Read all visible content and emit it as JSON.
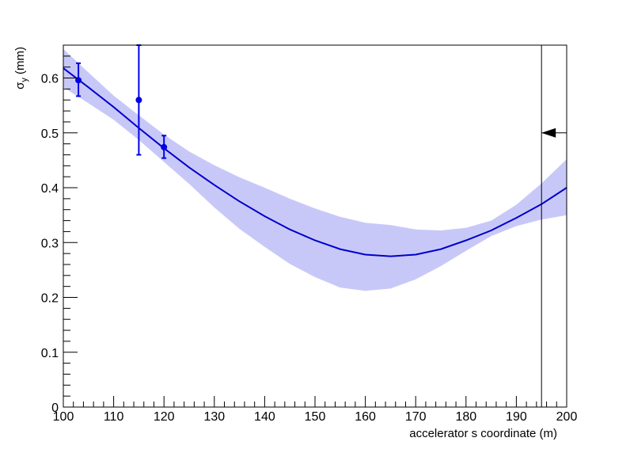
{
  "chart_data": {
    "type": "line",
    "title": "",
    "xlabel": "accelerator s coordinate (m)",
    "ylabel": {
      "symbol": "σ",
      "subscript": "y",
      "unit": " (mm)"
    },
    "xlim": [
      100,
      200
    ],
    "ylim": [
      0,
      0.66
    ],
    "x_ticks": [
      100,
      110,
      120,
      130,
      140,
      150,
      160,
      170,
      180,
      190,
      200
    ],
    "x_tick_labels": [
      "100",
      "110",
      "120",
      "130",
      "140",
      "150",
      "160",
      "170",
      "180",
      "190",
      "200"
    ],
    "y_ticks": [
      0,
      0.1,
      0.2,
      0.3,
      0.4,
      0.5,
      0.6
    ],
    "y_tick_labels": [
      "0",
      "0.1",
      "0.2",
      "0.3",
      "0.4",
      "0.5",
      "0.6"
    ],
    "grid": false,
    "colors": {
      "fit": "#0000cc",
      "band": "#c8c8f8",
      "points": "#0000e6",
      "marker": "#000000"
    },
    "fit_curve": {
      "x": [
        100,
        105,
        110,
        115,
        120,
        125,
        130,
        135,
        140,
        145,
        150,
        155,
        160,
        165,
        170,
        175,
        180,
        185,
        190,
        195,
        200
      ],
      "y": [
        0.618,
        0.583,
        0.547,
        0.509,
        0.472,
        0.437,
        0.405,
        0.375,
        0.348,
        0.324,
        0.304,
        0.288,
        0.278,
        0.275,
        0.278,
        0.288,
        0.304,
        0.322,
        0.345,
        0.37,
        0.4
      ]
    },
    "confidence_band": {
      "x": [
        100,
        105,
        110,
        115,
        120,
        125,
        130,
        135,
        140,
        145,
        150,
        155,
        160,
        165,
        170,
        175,
        180,
        185,
        190,
        195,
        200
      ],
      "upper": [
        0.653,
        0.61,
        0.568,
        0.532,
        0.497,
        0.466,
        0.441,
        0.419,
        0.4,
        0.38,
        0.362,
        0.347,
        0.336,
        0.332,
        0.324,
        0.322,
        0.327,
        0.34,
        0.369,
        0.408,
        0.452
      ],
      "lower": [
        0.583,
        0.554,
        0.524,
        0.487,
        0.447,
        0.407,
        0.364,
        0.325,
        0.292,
        0.261,
        0.237,
        0.218,
        0.212,
        0.216,
        0.233,
        0.257,
        0.285,
        0.312,
        0.33,
        0.342,
        0.35
      ]
    },
    "points": [
      {
        "x": 103,
        "y": 0.596,
        "y_err_low": 0.029,
        "y_err_high": 0.031
      },
      {
        "x": 115,
        "y": 0.56,
        "y_err_low": 0.1,
        "y_err_high": 0.1
      },
      {
        "x": 120,
        "y": 0.474,
        "y_err_low": 0.02,
        "y_err_high": 0.021
      }
    ],
    "vertical_line": {
      "x": 195
    },
    "arrow": {
      "from_x": 200,
      "to_x": 195,
      "y": 0.5,
      "direction": "left"
    }
  }
}
